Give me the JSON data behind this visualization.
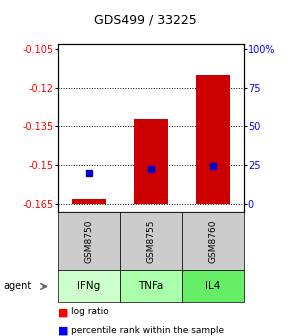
{
  "title": "GDS499 / 33225",
  "ylim": [
    -0.168,
    -0.103
  ],
  "yticks_left": [
    -0.105,
    -0.12,
    -0.135,
    -0.15,
    -0.165
  ],
  "yticks_right_vals": [
    0,
    25,
    50,
    75,
    100
  ],
  "yticks_right_labels": [
    "0",
    "25",
    "50",
    "75",
    "100%"
  ],
  "baseline": -0.165,
  "samples": [
    "GSM8750",
    "GSM8755",
    "GSM8760"
  ],
  "agents": [
    "IFNg",
    "TNFa",
    "IL4"
  ],
  "bar_tops": [
    -0.163,
    -0.132,
    -0.115
  ],
  "blue_y": [
    -0.153,
    -0.1515,
    -0.1505
  ],
  "bar_color": "#cc0000",
  "blue_color": "#0000cc",
  "gsm_bg": "#cccccc",
  "agent_bg": [
    "#ccffcc",
    "#aaffaa",
    "#66ee66"
  ]
}
